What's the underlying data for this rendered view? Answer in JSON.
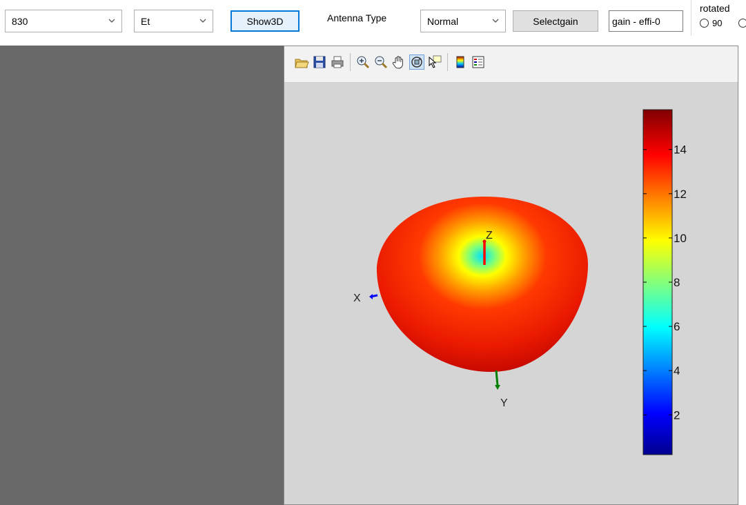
{
  "toolbar": {
    "frequency": "830",
    "field": "Et",
    "show3d_label": "Show3D",
    "antenna_type_label": "Antenna Type",
    "antenna_type": "Normal",
    "selectgain_label": "Selectgain",
    "gain_file": "gain - effi-0",
    "rotated": {
      "title": "rotated",
      "option1": "90"
    }
  },
  "figure": {
    "toolbar_icons": [
      "open-file-icon",
      "save-icon",
      "print-icon",
      "zoom-in-icon",
      "zoom-out-icon",
      "pan-hand-icon",
      "rotate-3d-icon",
      "data-cursor-icon",
      "insert-colorbar-icon",
      "insert-legend-icon"
    ],
    "axes_labels": {
      "x": "X",
      "y": "Y",
      "z": "Z"
    },
    "colorbar": {
      "ticks": [
        "2",
        "4",
        "6",
        "8",
        "10",
        "12",
        "14"
      ],
      "tick_values": [
        2,
        4,
        6,
        8,
        10,
        12,
        14
      ],
      "range": [
        0.2,
        15.8
      ],
      "colormap": "jet"
    },
    "colors": {
      "figure_bg": "#d5d5d5",
      "left_panel": "#696969",
      "x_axis": "#0000ff",
      "y_axis": "#008000",
      "z_axis": "#ff0000"
    }
  }
}
